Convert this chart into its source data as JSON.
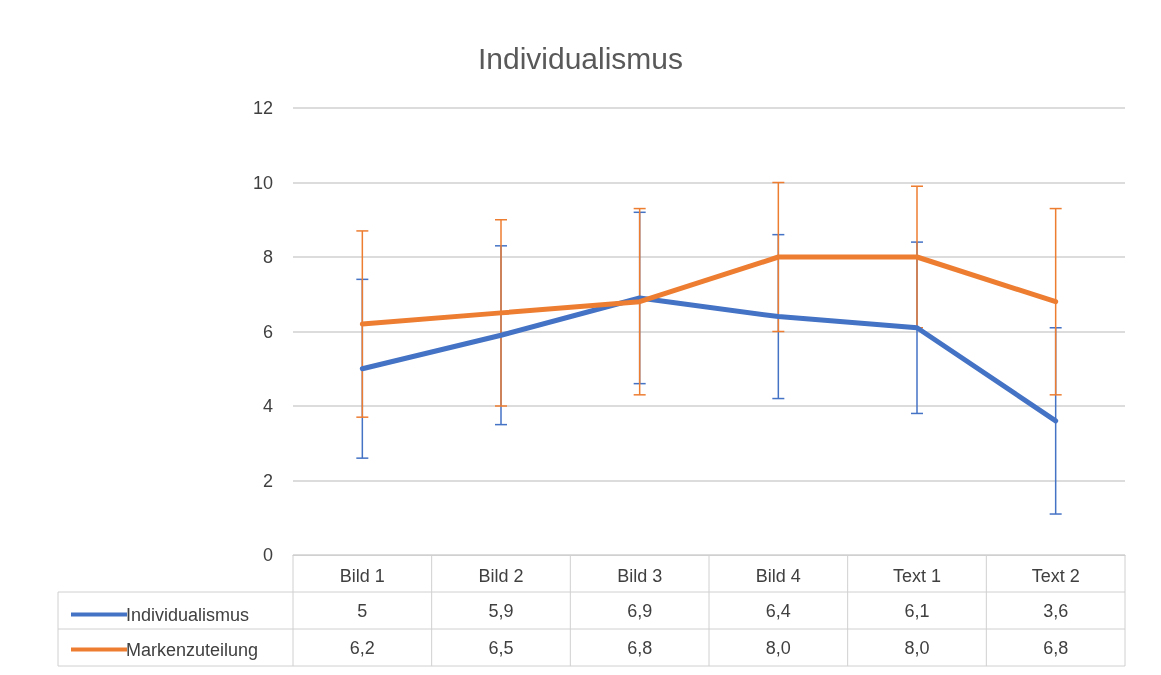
{
  "chart_data": {
    "type": "line",
    "title": "Individualismus",
    "categories": [
      "Bild 1",
      "Bild 2",
      "Bild 3",
      "Bild 4",
      "Text 1",
      "Text 2"
    ],
    "series": [
      {
        "name": "Individualismus",
        "color": "#4472c4",
        "values": [
          5,
          5.9,
          6.9,
          6.4,
          6.1,
          3.6
        ],
        "value_labels": [
          "5",
          "5,9",
          "6,9",
          "6,4",
          "6,1",
          "3,6"
        ],
        "errors": [
          [
            2.6,
            7.4
          ],
          [
            3.5,
            8.3
          ],
          [
            4.6,
            9.2
          ],
          [
            4.2,
            8.6
          ],
          [
            3.8,
            8.4
          ],
          [
            1.1,
            6.1
          ]
        ]
      },
      {
        "name": "Markenzuteilung",
        "color": "#ed7d31",
        "values": [
          6.2,
          6.5,
          6.8,
          8.0,
          8.0,
          6.8
        ],
        "value_labels": [
          "6,2",
          "6,5",
          "6,8",
          "8,0",
          "8,0",
          "6,8"
        ],
        "errors": [
          [
            3.7,
            8.7
          ],
          [
            4.0,
            9.0
          ],
          [
            4.3,
            9.3
          ],
          [
            6.0,
            10.0
          ],
          [
            6.1,
            9.9
          ],
          [
            4.3,
            9.3
          ]
        ]
      }
    ],
    "ylim": [
      0,
      12
    ],
    "yticks": [
      0,
      2,
      4,
      6,
      8,
      10,
      12
    ],
    "grid": "y",
    "legend": "bottom left",
    "marker": "none",
    "line_style": "solid"
  }
}
